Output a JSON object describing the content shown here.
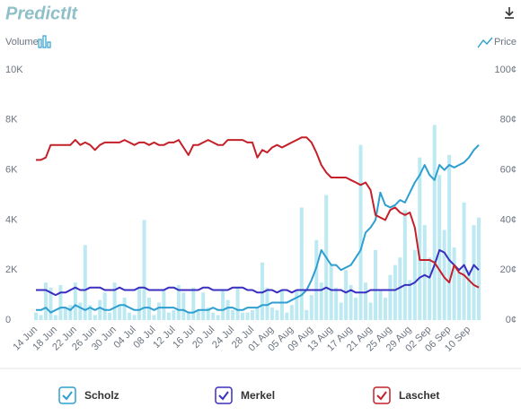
{
  "header": {
    "logo": "PredictIt"
  },
  "chart_data": {
    "type": "bar",
    "ylabel": "Volume",
    "y2label": "Price",
    "color": "#bde9f2",
    "categories": [
      "14 Jun",
      null,
      null,
      null,
      "18 Jun",
      null,
      null,
      null,
      "22 Jun",
      null,
      null,
      null,
      "26 Jun",
      null,
      null,
      null,
      "30 Jun",
      null,
      null,
      null,
      "04 Jul",
      null,
      null,
      null,
      "08 Jul",
      null,
      null,
      null,
      "12 Jul",
      null,
      null,
      null,
      "16 Jul",
      null,
      null,
      null,
      "20 Jul",
      null,
      null,
      null,
      "24 Jul",
      null,
      null,
      null,
      "28 Jul",
      null,
      null,
      null,
      "01 Aug",
      null,
      null,
      null,
      "05 Aug",
      null,
      null,
      null,
      "09 Aug",
      null,
      null,
      null,
      "13 Aug",
      null,
      null,
      null,
      "17 Aug",
      null,
      null,
      null,
      "21 Aug",
      null,
      null,
      null,
      "25 Aug",
      null,
      null,
      null,
      "29 Aug",
      null,
      null,
      null,
      "02 Sep",
      null,
      null,
      null,
      "06 Sep",
      null,
      null,
      null,
      "10 Sep",
      null,
      null
    ],
    "values": [
      300,
      200,
      1500,
      1300,
      200,
      1400,
      500,
      600,
      1500,
      700,
      3000,
      600,
      200,
      800,
      1100,
      300,
      1500,
      600,
      900,
      300,
      200,
      1300,
      4000,
      900,
      200,
      700,
      1200,
      300,
      400,
      1400,
      1100,
      300,
      1300,
      400,
      1100,
      500,
      300,
      200,
      1200,
      800,
      400,
      1300,
      300,
      300,
      400,
      500,
      2300,
      1300,
      500,
      400,
      1200,
      300,
      600,
      1200,
      4500,
      400,
      1000,
      3200,
      1500,
      5000,
      2200,
      1300,
      700,
      2000,
      1400,
      900,
      7000,
      1500,
      700,
      2800,
      1200,
      900,
      1800,
      2200,
      2500,
      4400,
      1600,
      2800,
      6500,
      3800,
      2500,
      7800,
      5800,
      3600,
      6600,
      2900,
      1900,
      4700,
      2000,
      3800,
      4100
    ],
    "ylim": [
      0,
      10000
    ],
    "yticks": [
      0,
      {
        "value": 2000,
        "label": "2K"
      },
      {
        "value": 4000,
        "label": "4K"
      },
      {
        "value": 6000,
        "label": "6K"
      },
      {
        "value": 8000,
        "label": "8K"
      },
      {
        "value": 10000,
        "label": "10K"
      }
    ],
    "y2lim": [
      0,
      100
    ],
    "y2ticks": [
      {
        "value": 0,
        "label": "0¢"
      },
      {
        "value": 20,
        "label": "20¢"
      },
      {
        "value": 40,
        "label": "40¢"
      },
      {
        "value": 60,
        "label": "60¢"
      },
      {
        "value": 80,
        "label": "80¢"
      },
      {
        "value": 100,
        "label": "100¢"
      }
    ],
    "series": [
      {
        "name": "Scholz",
        "type": "line",
        "axis": "y2",
        "color": "#2e9fd0",
        "values": [
          4,
          4,
          5,
          3,
          4,
          5,
          5,
          4,
          6,
          5,
          4,
          5,
          4,
          5,
          4,
          4,
          5,
          6,
          6,
          5,
          4,
          4,
          5,
          5,
          4,
          5,
          5,
          5,
          5,
          4,
          4,
          3,
          3,
          4,
          4,
          4,
          5,
          4,
          4,
          5,
          5,
          4,
          4,
          5,
          5,
          5,
          6,
          6,
          7,
          7,
          7,
          7,
          8,
          9,
          10,
          12,
          16,
          21,
          28,
          25,
          22,
          22,
          20,
          21,
          22,
          25,
          28,
          35,
          37,
          40,
          51,
          46,
          45,
          46,
          48,
          47,
          51,
          55,
          58,
          62,
          58,
          56,
          62,
          60,
          62,
          61,
          62,
          63,
          65,
          68,
          70
        ]
      },
      {
        "name": "Merkel",
        "type": "line",
        "axis": "y2",
        "color": "#3a2fc0",
        "values": [
          12,
          12,
          12,
          11,
          10,
          11,
          11,
          12,
          13,
          12,
          12,
          13,
          13,
          13,
          12,
          12,
          12,
          13,
          12,
          12,
          12,
          13,
          13,
          12,
          12,
          12,
          12,
          13,
          13,
          12,
          12,
          12,
          12,
          12,
          13,
          13,
          12,
          12,
          12,
          12,
          13,
          13,
          13,
          12,
          12,
          11,
          11,
          12,
          12,
          11,
          12,
          12,
          11,
          12,
          12,
          12,
          12,
          12,
          12,
          13,
          12,
          12,
          12,
          11,
          12,
          11,
          11,
          11,
          12,
          12,
          12,
          12,
          12,
          12,
          13,
          14,
          14,
          15,
          17,
          18,
          17,
          22,
          28,
          27,
          24,
          22,
          20,
          22,
          18,
          22,
          20
        ]
      },
      {
        "name": "Laschet",
        "type": "line",
        "axis": "y2",
        "color": "#c4202a",
        "values": [
          64,
          64,
          65,
          70,
          70,
          70,
          70,
          70,
          72,
          70,
          71,
          70,
          68,
          70,
          71,
          71,
          71,
          71,
          72,
          71,
          70,
          71,
          71,
          70,
          71,
          70,
          70,
          71,
          71,
          72,
          69,
          66,
          70,
          70,
          71,
          72,
          71,
          70,
          70,
          72,
          72,
          72,
          72,
          71,
          71,
          65,
          68,
          67,
          69,
          70,
          69,
          70,
          71,
          72,
          73,
          73,
          71,
          67,
          62,
          59,
          57,
          57,
          57,
          57,
          56,
          55,
          54,
          55,
          52,
          42,
          41,
          40,
          44,
          45,
          43,
          42,
          43,
          37,
          24,
          24,
          24,
          23,
          20,
          17,
          15,
          22,
          19,
          18,
          16,
          14,
          13
        ]
      }
    ]
  }
}
